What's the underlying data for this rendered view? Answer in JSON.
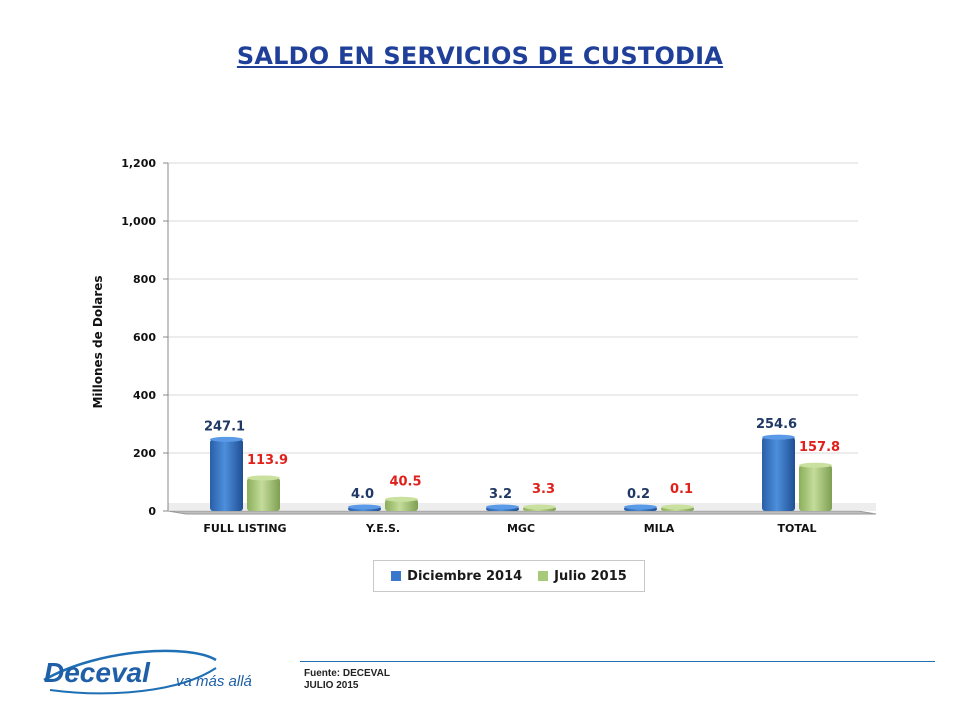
{
  "title": "SALDO EN SERVICIOS DE CUSTODIA",
  "chart_data": {
    "type": "bar",
    "ylabel": "Millones de Dolares",
    "xlabel": "",
    "ylim": [
      0,
      1200
    ],
    "yticks": [
      0,
      200,
      400,
      600,
      800,
      1000,
      1200
    ],
    "ytick_labels": [
      "0",
      "200",
      "400",
      "600",
      "800",
      "1,000",
      "1,200"
    ],
    "categories": [
      "FULL LISTING",
      "Y.E.S.",
      "MGC",
      "MILA",
      "TOTAL"
    ],
    "series": [
      {
        "name": "Diciembre 2014",
        "values": [
          247.1,
          4.0,
          3.2,
          0.2,
          254.6
        ],
        "labels": [
          "247.1",
          "4.0",
          "3.2",
          "0.2",
          "254.6"
        ],
        "color": "#3a78c9",
        "label_color": "#1f3864"
      },
      {
        "name": "Julio 2015",
        "values": [
          113.9,
          40.5,
          3.3,
          0.1,
          157.8
        ],
        "labels": [
          "113.9",
          "40.5",
          "3.3",
          "0.1",
          "157.8"
        ],
        "color": "#a9c97a",
        "label_color": "#e0201b"
      }
    ],
    "grid": true,
    "legend_position": "bottom"
  },
  "footer": {
    "source": "Fuente: DECEVAL",
    "date": "JULIO 2015"
  },
  "logo": {
    "name": "Deceval",
    "tagline": "va más allá"
  }
}
